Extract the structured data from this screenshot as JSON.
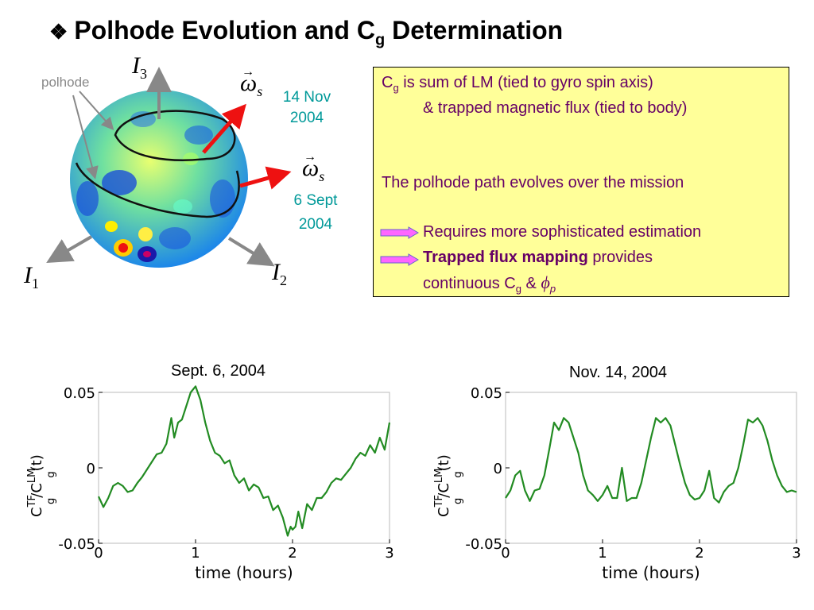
{
  "slide": {
    "title_main": "Polhode Evolution and C",
    "title_sub": "g",
    "title_tail": " Determination",
    "bullet": "❖"
  },
  "sphere": {
    "label_polhode": "polhode",
    "axis_I3": "I",
    "axis_I3_sub": "3",
    "axis_I1": "I",
    "axis_I1_sub": "1",
    "axis_I2": "I",
    "axis_I2_sub": "2",
    "omega_symbol": "ω",
    "omega_sub": "s",
    "date_nov_line1": "14 Nov",
    "date_nov_line2": "2004",
    "date_sept_line1": "6 Sept",
    "date_sept_line2": "2004",
    "colors": {
      "arrow_red": "#ee1111",
      "axis_gray": "#888888",
      "date_teal": "#009999"
    }
  },
  "infobox": {
    "line1_a": "C",
    "line1_sub": "g",
    "line1_b": " is sum of LM (tied to gyro spin axis)",
    "line2": "& trapped magnetic flux (tied to body)",
    "line3": "The polhode path evolves over the mission",
    "line4": "Requires more sophisticated estimation",
    "line5_bold": "Trapped flux mapping",
    "line5_rest": " provides",
    "line6_a": "continuous C",
    "line6_sub": "g",
    "line6_b": " & ",
    "line6_phi": "ϕ",
    "line6_phi_sub": "p",
    "colors": {
      "background": "#ffff99",
      "text": "#660066",
      "arrow": "#ff66ff"
    }
  },
  "chart_data": [
    {
      "type": "line",
      "title": "Sept. 6, 2004",
      "xlabel": "time (hours)",
      "ylabel": "C_g^TF/C_g^LM(t)",
      "xlim": [
        0,
        3
      ],
      "ylim": [
        -0.05,
        0.05
      ],
      "xticks": [
        "0",
        "1",
        "2",
        "3"
      ],
      "yticks": [
        "0.05",
        "0",
        "-0.05"
      ],
      "color": "#228b22",
      "x": [
        0,
        0.05,
        0.1,
        0.15,
        0.2,
        0.25,
        0.3,
        0.35,
        0.4,
        0.45,
        0.5,
        0.55,
        0.6,
        0.65,
        0.7,
        0.75,
        0.78,
        0.82,
        0.86,
        0.9,
        0.95,
        1.0,
        1.05,
        1.1,
        1.15,
        1.2,
        1.25,
        1.3,
        1.35,
        1.4,
        1.45,
        1.5,
        1.55,
        1.6,
        1.65,
        1.7,
        1.75,
        1.8,
        1.85,
        1.9,
        1.95,
        1.98,
        2.0,
        2.03,
        2.06,
        2.1,
        2.15,
        2.2,
        2.25,
        2.3,
        2.35,
        2.4,
        2.45,
        2.5,
        2.55,
        2.6,
        2.65,
        2.7,
        2.75,
        2.8,
        2.85,
        2.9,
        2.95,
        3.0
      ],
      "y": [
        -0.019,
        -0.026,
        -0.02,
        -0.012,
        -0.01,
        -0.012,
        -0.016,
        -0.015,
        -0.01,
        -0.006,
        -0.001,
        0.004,
        0.009,
        0.01,
        0.016,
        0.033,
        0.02,
        0.03,
        0.032,
        0.04,
        0.05,
        0.054,
        0.045,
        0.03,
        0.018,
        0.01,
        0.008,
        0.003,
        0.005,
        -0.005,
        -0.01,
        -0.007,
        -0.015,
        -0.011,
        -0.013,
        -0.02,
        -0.019,
        -0.028,
        -0.025,
        -0.033,
        -0.045,
        -0.039,
        -0.041,
        -0.039,
        -0.029,
        -0.04,
        -0.024,
        -0.028,
        -0.02,
        -0.02,
        -0.016,
        -0.01,
        -0.007,
        -0.008,
        -0.004,
        0.0,
        0.006,
        0.01,
        0.008,
        0.015,
        0.01,
        0.02,
        0.012,
        0.03
      ]
    },
    {
      "type": "line",
      "title": "Nov. 14, 2004",
      "xlabel": "time (hours)",
      "ylabel": "C_g^TF/C_g^LM(t)",
      "xlim": [
        0,
        3
      ],
      "ylim": [
        -0.05,
        0.05
      ],
      "xticks": [
        "0",
        "1",
        "2",
        "3"
      ],
      "yticks": [
        "0.05",
        "0",
        "-0.05"
      ],
      "color": "#228b22",
      "x": [
        0,
        0.05,
        0.1,
        0.15,
        0.2,
        0.25,
        0.3,
        0.35,
        0.4,
        0.45,
        0.5,
        0.55,
        0.6,
        0.65,
        0.7,
        0.75,
        0.8,
        0.85,
        0.9,
        0.95,
        1.0,
        1.05,
        1.1,
        1.15,
        1.2,
        1.25,
        1.3,
        1.35,
        1.4,
        1.45,
        1.5,
        1.55,
        1.6,
        1.65,
        1.7,
        1.75,
        1.8,
        1.85,
        1.9,
        1.95,
        2.0,
        2.05,
        2.1,
        2.15,
        2.2,
        2.25,
        2.3,
        2.35,
        2.4,
        2.45,
        2.5,
        2.55,
        2.6,
        2.65,
        2.7,
        2.75,
        2.8,
        2.85,
        2.9,
        2.95,
        3.0
      ],
      "y": [
        -0.02,
        -0.015,
        -0.005,
        -0.002,
        -0.015,
        -0.022,
        -0.015,
        -0.014,
        -0.005,
        0.012,
        0.03,
        0.025,
        0.033,
        0.03,
        0.02,
        0.01,
        -0.005,
        -0.015,
        -0.018,
        -0.022,
        -0.018,
        -0.012,
        -0.02,
        -0.02,
        0.0,
        -0.022,
        -0.02,
        -0.02,
        -0.01,
        0.005,
        0.02,
        0.033,
        0.03,
        0.033,
        0.028,
        0.015,
        0.002,
        -0.01,
        -0.018,
        -0.021,
        -0.02,
        -0.015,
        -0.002,
        -0.02,
        -0.023,
        -0.016,
        -0.012,
        -0.01,
        0.0,
        0.015,
        0.032,
        0.03,
        0.033,
        0.028,
        0.018,
        0.005,
        -0.005,
        -0.012,
        -0.016,
        -0.015,
        -0.016
      ]
    }
  ]
}
